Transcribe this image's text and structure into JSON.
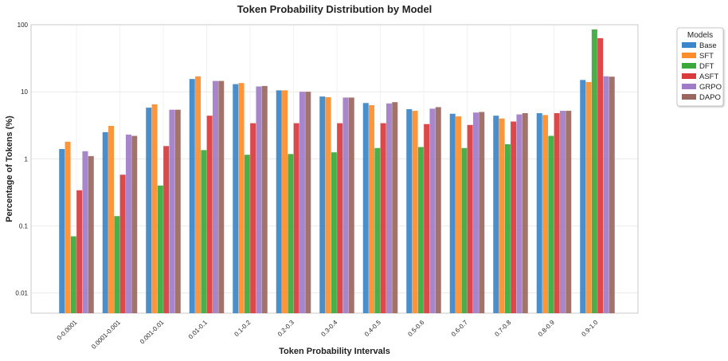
{
  "chart_data": {
    "type": "bar",
    "title": "Token Probability Distribution by Model",
    "xlabel": "Token Probability Intervals",
    "ylabel": "Percentage of Tokens (%)",
    "yscale": "log",
    "ylim": [
      0.005,
      100
    ],
    "yticks": [
      0.01,
      0.1,
      1,
      10,
      100
    ],
    "ytick_labels": [
      "0.01",
      "0.1",
      "1",
      "10",
      "100"
    ],
    "grid": true,
    "legend_title": "Models",
    "legend_position": "outside-top-right",
    "categories": [
      "0-0.0001",
      "0.0001-0.001",
      "0.001-0.01",
      "0.01-0.1",
      "0.1-0.2",
      "0.2-0.3",
      "0.3-0.4",
      "0.4-0.5",
      "0.5-0.6",
      "0.6-0.7",
      "0.7-0.8",
      "0.8-0.9",
      "0.9-1.0"
    ],
    "series": [
      {
        "name": "Base",
        "color": "#3a86c8",
        "values": [
          1.4,
          2.5,
          5.8,
          15.5,
          13.0,
          10.5,
          8.5,
          6.8,
          5.5,
          4.7,
          4.4,
          4.8,
          15.0
        ]
      },
      {
        "name": "SFT",
        "color": "#fd8c2a",
        "values": [
          1.8,
          3.1,
          6.5,
          17.0,
          13.5,
          10.5,
          8.3,
          6.3,
          5.2,
          4.3,
          4.0,
          4.5,
          14.0
        ]
      },
      {
        "name": "DFT",
        "color": "#3aa83a",
        "values": [
          0.07,
          0.14,
          0.4,
          1.35,
          1.15,
          1.18,
          1.25,
          1.45,
          1.5,
          1.45,
          1.65,
          2.2,
          85.0
        ]
      },
      {
        "name": "ASFT",
        "color": "#d93a3b",
        "values": [
          0.34,
          0.58,
          1.55,
          4.4,
          3.4,
          3.4,
          3.4,
          3.4,
          3.3,
          3.2,
          3.6,
          4.8,
          63.0
        ]
      },
      {
        "name": "GRPO",
        "color": "#a07cc8",
        "values": [
          1.3,
          2.3,
          5.4,
          14.5,
          12.0,
          10.0,
          8.2,
          6.7,
          5.6,
          4.9,
          4.6,
          5.2,
          17.0
        ]
      },
      {
        "name": "DAPO",
        "color": "#9a675e",
        "values": [
          1.1,
          2.2,
          5.4,
          14.5,
          12.2,
          10.0,
          8.2,
          7.0,
          5.9,
          5.0,
          4.8,
          5.2,
          16.8
        ]
      }
    ]
  }
}
